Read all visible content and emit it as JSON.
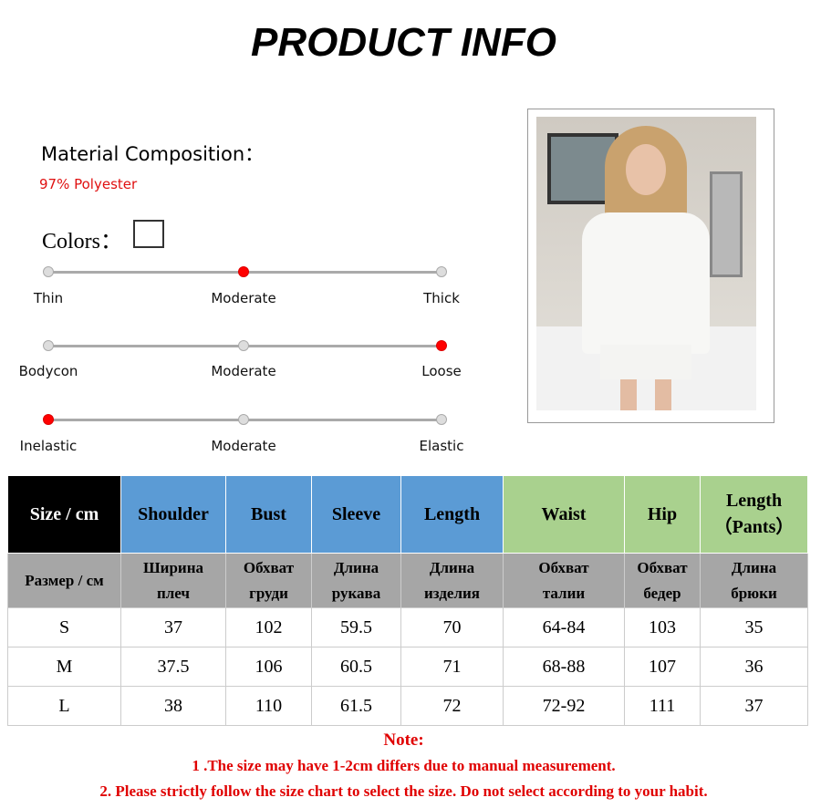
{
  "title": "PRODUCT INFO",
  "material": {
    "label": "Material Composition：",
    "value": "97% Polyester"
  },
  "colors": {
    "label": "Colors：",
    "swatch": "#ffffff"
  },
  "scales": [
    {
      "labels": [
        "Thin",
        "Moderate",
        "Thick"
      ],
      "selected": 1
    },
    {
      "labels": [
        "Bodycon",
        "Moderate",
        "Loose"
      ],
      "selected": 2
    },
    {
      "labels": [
        "Inelastic",
        "Moderate",
        "Elastic"
      ],
      "selected": 0
    }
  ],
  "table": {
    "header": [
      "Size / cm",
      "Shoulder",
      "Bust",
      "Sleeve",
      "Length",
      "Waist",
      "Hip",
      "Length\n（Pants）"
    ],
    "header_colors": [
      "#000000",
      "#5b9bd5",
      "#5b9bd5",
      "#5b9bd5",
      "#5b9bd5",
      "#a9d18e",
      "#a9d18e",
      "#a9d18e"
    ],
    "ru": [
      "Размер / см",
      "Ширина\nплеч",
      "Обхват\nгруди",
      "Длина\nрукава",
      "Длина\nизделия",
      "Обхват\nталии",
      "Обхват\nбедер",
      "Длина\nбрюки"
    ],
    "rows": [
      [
        "S",
        "37",
        "102",
        "59.5",
        "70",
        "64-84",
        "103",
        "35"
      ],
      [
        "M",
        "37.5",
        "106",
        "60.5",
        "71",
        "68-88",
        "107",
        "36"
      ],
      [
        "L",
        "38",
        "110",
        "61.5",
        "72",
        "72-92",
        "111",
        "37"
      ]
    ]
  },
  "notes": {
    "title": "Note:",
    "line1": "1 .The size may have 1-2cm differs due to manual measurement.",
    "line2": "2. Please strictly follow the size chart to select the size. Do not select according to your habit."
  }
}
